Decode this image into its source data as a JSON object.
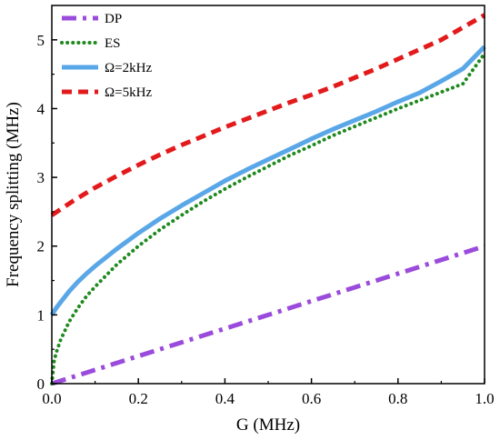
{
  "chart_data": {
    "type": "line",
    "xlabel": "G (MHz)",
    "ylabel": "Frequency splitting (MHz)",
    "xlim": [
      0.0,
      1.0
    ],
    "ylim": [
      0,
      5.5
    ],
    "x_ticks": [
      "0.0",
      "0.2",
      "0.4",
      "0.6",
      "0.8",
      "1.0"
    ],
    "y_ticks": [
      "0",
      "1",
      "2",
      "3",
      "4",
      "5"
    ],
    "grid": false,
    "legend_position": "top-left",
    "series": [
      {
        "name": "DP",
        "color": "#9b4bdc",
        "style": "dash-dot",
        "x": [
          0.0,
          0.1,
          0.2,
          0.3,
          0.4,
          0.5,
          0.6,
          0.7,
          0.8,
          0.9,
          1.0
        ],
        "y": [
          0.0,
          0.2,
          0.4,
          0.6,
          0.8,
          1.0,
          1.2,
          1.4,
          1.6,
          1.8,
          2.0
        ]
      },
      {
        "name": "ES",
        "color": "#1f8a1f",
        "style": "dotted",
        "x": [
          0.0,
          0.005,
          0.01,
          0.02,
          0.04,
          0.06,
          0.08,
          0.1,
          0.15,
          0.2,
          0.25,
          0.3,
          0.35,
          0.4,
          0.45,
          0.5,
          0.55,
          0.6,
          0.65,
          0.7,
          0.75,
          0.8,
          0.85,
          0.9,
          0.95,
          1.0
        ],
        "y": [
          0.0,
          0.32,
          0.45,
          0.63,
          0.9,
          1.1,
          1.27,
          1.41,
          1.73,
          2.0,
          2.24,
          2.45,
          2.65,
          2.83,
          3.0,
          3.16,
          3.32,
          3.46,
          3.61,
          3.74,
          3.87,
          4.0,
          4.12,
          4.24,
          4.36,
          4.8
        ]
      },
      {
        "name": "Ω=2kHz",
        "color": "#5aa7e8",
        "style": "solid",
        "x": [
          0.0,
          0.01,
          0.02,
          0.04,
          0.06,
          0.08,
          0.1,
          0.15,
          0.2,
          0.25,
          0.3,
          0.35,
          0.4,
          0.45,
          0.5,
          0.55,
          0.6,
          0.65,
          0.7,
          0.75,
          0.8,
          0.85,
          0.9,
          0.95,
          1.0
        ],
        "y": [
          1.0,
          1.1,
          1.18,
          1.34,
          1.48,
          1.6,
          1.71,
          1.96,
          2.19,
          2.4,
          2.59,
          2.77,
          2.95,
          3.11,
          3.26,
          3.41,
          3.56,
          3.7,
          3.83,
          3.96,
          4.1,
          4.23,
          4.4,
          4.58,
          4.9
        ]
      },
      {
        "name": "Ω=5kHz",
        "color": "#e31a1c",
        "style": "dashed",
        "x": [
          0.0,
          0.05,
          0.1,
          0.15,
          0.2,
          0.25,
          0.3,
          0.35,
          0.4,
          0.45,
          0.5,
          0.55,
          0.6,
          0.65,
          0.7,
          0.75,
          0.8,
          0.85,
          0.9,
          0.95,
          1.0
        ],
        "y": [
          2.45,
          2.66,
          2.85,
          3.02,
          3.18,
          3.33,
          3.47,
          3.6,
          3.73,
          3.85,
          3.97,
          4.09,
          4.2,
          4.32,
          4.45,
          4.58,
          4.72,
          4.86,
          5.0,
          5.18,
          5.36
        ]
      }
    ]
  }
}
